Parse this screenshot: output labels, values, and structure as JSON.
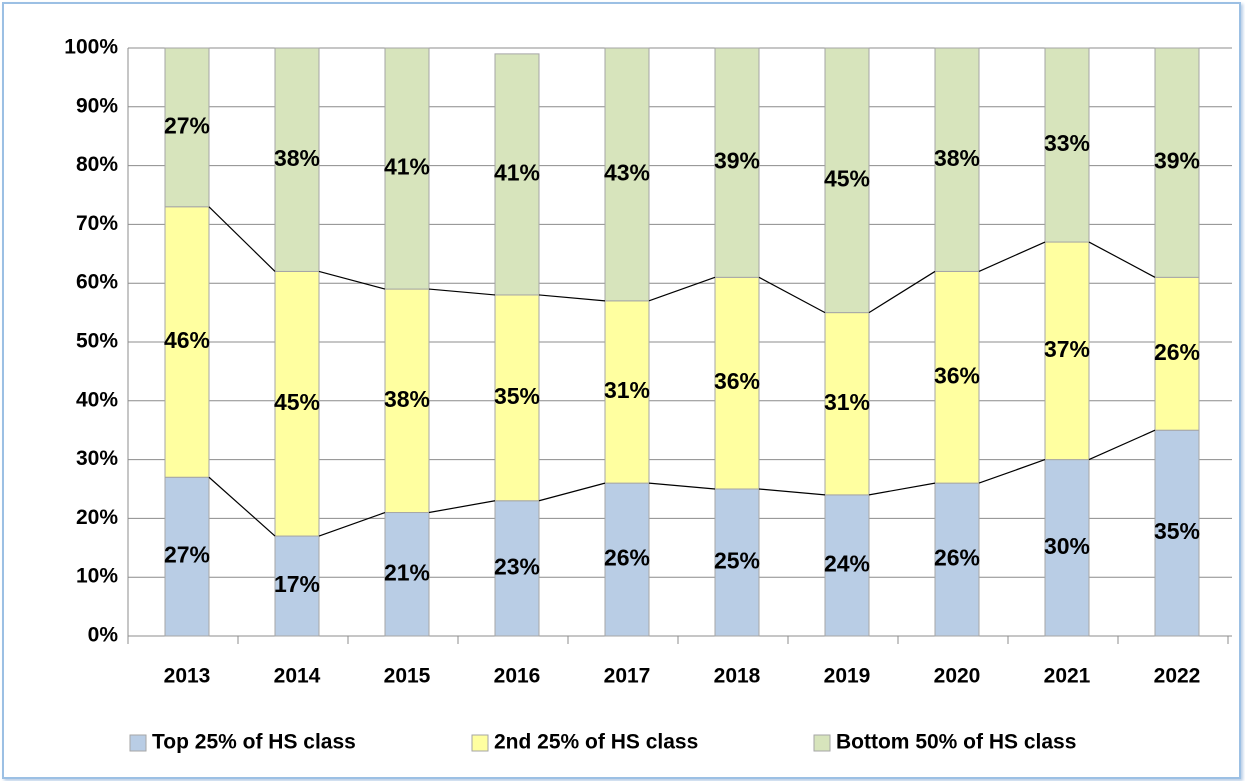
{
  "chart_data": {
    "type": "stacked_bar",
    "categories": [
      "2013",
      "2014",
      "2015",
      "2016",
      "2017",
      "2018",
      "2019",
      "2020",
      "2021",
      "2022"
    ],
    "series": [
      {
        "name": "Top 25% of HS class",
        "color": "#b9cde5",
        "values": [
          27,
          17,
          21,
          23,
          26,
          25,
          24,
          26,
          30,
          35
        ],
        "value_labels": [
          "27%",
          "17%",
          "21%",
          "23%",
          "26%",
          "25%",
          "24%",
          "26%",
          "30%",
          "35%"
        ]
      },
      {
        "name": "2nd 25% of HS class",
        "color": "#ffffa0",
        "values": [
          46,
          45,
          38,
          35,
          31,
          36,
          31,
          36,
          37,
          26
        ],
        "value_labels": [
          "46%",
          "45%",
          "38%",
          "35%",
          "31%",
          "36%",
          "31%",
          "36%",
          "37%",
          "26%"
        ]
      },
      {
        "name": "Bottom 50% of HS class",
        "color": "#d7e4bc",
        "values": [
          27,
          38,
          41,
          41,
          43,
          39,
          45,
          38,
          33,
          39
        ],
        "value_labels": [
          "27%",
          "38%",
          "41%",
          "41%",
          "43%",
          "39%",
          "45%",
          "38%",
          "33%",
          "39%"
        ]
      }
    ],
    "ylim": [
      0,
      100
    ],
    "yticks": [
      {
        "value": 0,
        "label": "0%"
      },
      {
        "value": 10,
        "label": "10%"
      },
      {
        "value": 20,
        "label": "20%"
      },
      {
        "value": 30,
        "label": "30%"
      },
      {
        "value": 40,
        "label": "40%"
      },
      {
        "value": 50,
        "label": "50%"
      },
      {
        "value": 60,
        "label": "60%"
      },
      {
        "value": 70,
        "label": "70%"
      },
      {
        "value": 80,
        "label": "80%"
      },
      {
        "value": 90,
        "label": "90%"
      },
      {
        "value": 100,
        "label": "100%"
      }
    ],
    "grid": true,
    "legend": "bottom"
  }
}
